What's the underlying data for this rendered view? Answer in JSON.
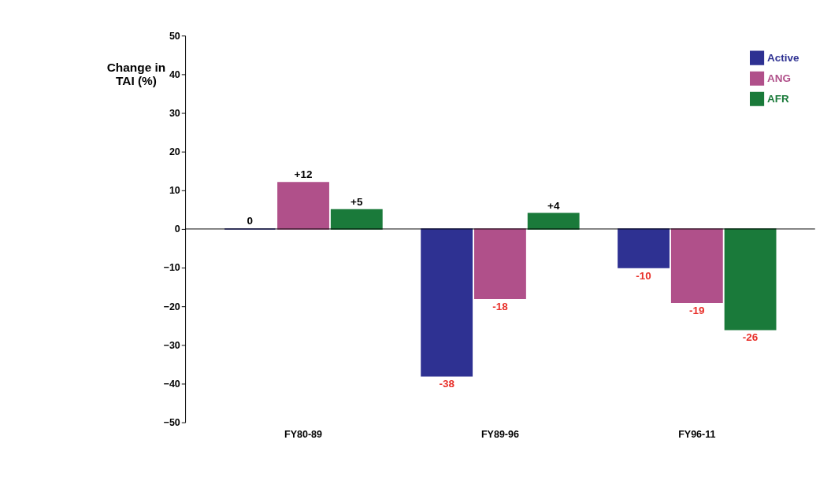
{
  "chart_data": {
    "type": "bar",
    "ylabel": "Change in TAI (%)",
    "categories": [
      "FY80-89",
      "FY89-96",
      "FY96-11"
    ],
    "series": [
      {
        "name": "Active",
        "color": "#2e3192",
        "values": [
          0,
          -38,
          -10
        ],
        "value_labels": [
          "0",
          "-38",
          "-10"
        ]
      },
      {
        "name": "ANG",
        "color": "#b0508a",
        "values": [
          12,
          -18,
          -19
        ],
        "value_labels": [
          "+12",
          "-18",
          "-19"
        ]
      },
      {
        "name": "AFR",
        "color": "#1a7a3a",
        "values": [
          5,
          4,
          -26
        ],
        "value_labels": [
          "+5",
          "+4",
          "-26"
        ]
      }
    ],
    "ylim": [
      -50,
      50
    ],
    "yticks": [
      -50,
      -40,
      -30,
      -20,
      -10,
      0,
      10,
      20,
      30,
      40,
      50
    ],
    "ref_lines": [
      {
        "axis": "y",
        "value": 0,
        "color": "#000000"
      }
    ],
    "grid": false,
    "legend": "top right"
  }
}
